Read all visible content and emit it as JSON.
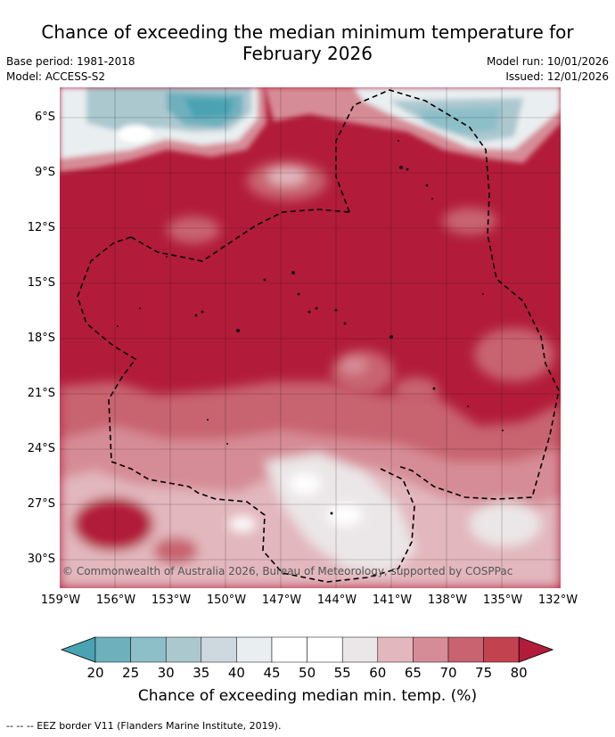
{
  "title_line1": "Chance of exceeding the median minimum temperature for",
  "title_line2": "February 2026",
  "base_period": "Base period: 1981-2018",
  "model": "Model: ACCESS-S2",
  "model_run": "Model run: 10/01/2026",
  "issued": "Issued: 12/01/2026",
  "copyright": "© Commonwealth of Australia 2026, Bureau of Meteorology, supported by COSPPac",
  "lat_ticks": [
    "6°S",
    "9°S",
    "12°S",
    "15°S",
    "18°S",
    "21°S",
    "24°S",
    "27°S",
    "30°S"
  ],
  "lon_ticks": [
    "159°W",
    "156°W",
    "153°W",
    "150°W",
    "147°W",
    "144°W",
    "141°W",
    "138°W",
    "135°W",
    "132°W"
  ],
  "colorbar": {
    "ticks": [
      "20",
      "25",
      "30",
      "35",
      "40",
      "45",
      "50",
      "55",
      "60",
      "65",
      "70",
      "75",
      "80"
    ],
    "colors": [
      "#4aa3b3",
      "#6fb0bd",
      "#8dbfc9",
      "#abc8cf",
      "#cdd9de",
      "#e9eef0",
      "#ffffff",
      "#ffffff",
      "#ebe6e7",
      "#e2b7bd",
      "#d68c96",
      "#c8636f",
      "#c2434f",
      "#b21c3a"
    ],
    "title": "Chance of exceeding median min. temp. (%)"
  },
  "footer": "-- -- -- EEZ border V11 (Flanders Marine Institute, 2019)."
}
